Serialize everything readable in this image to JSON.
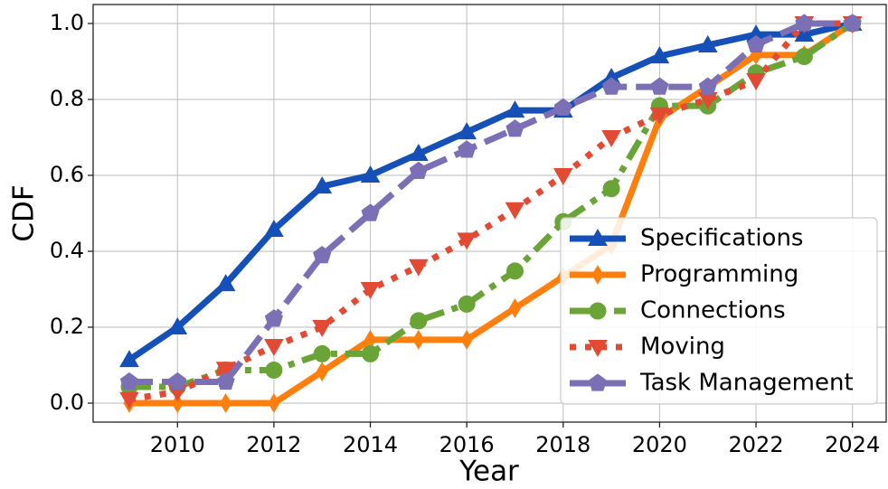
{
  "chart_data": {
    "type": "line",
    "x": [
      2009,
      2010,
      2011,
      2012,
      2013,
      2014,
      2015,
      2016,
      2017,
      2018,
      2019,
      2020,
      2021,
      2022,
      2023,
      2024
    ],
    "series": [
      {
        "name": "Specifications",
        "color": "#1550b8",
        "linestyle": "solid",
        "marker": "triangle-up",
        "values": [
          0.114,
          0.2,
          0.314,
          0.457,
          0.571,
          0.6,
          0.657,
          0.714,
          0.771,
          0.771,
          0.857,
          0.914,
          0.943,
          0.971,
          0.971,
          1.0
        ]
      },
      {
        "name": "Programming",
        "color": "#ff7f0e",
        "linestyle": "solid",
        "marker": "thin-diamond",
        "values": [
          0,
          0,
          0,
          0,
          0.083,
          0.167,
          0.167,
          0.167,
          0.25,
          0.333,
          0.417,
          0.75,
          0.833,
          0.917,
          0.917,
          1.0
        ]
      },
      {
        "name": "Connections",
        "color": "#6aa336",
        "linestyle": "dashdot",
        "marker": "circle",
        "values": [
          0.043,
          0.043,
          0.087,
          0.087,
          0.13,
          0.13,
          0.217,
          0.261,
          0.348,
          0.478,
          0.565,
          0.783,
          0.783,
          0.87,
          0.913,
          1.0
        ]
      },
      {
        "name": "Moving",
        "color": "#e24a33",
        "linestyle": "dotted",
        "marker": "triangle-down",
        "values": [
          0.01,
          0.03,
          0.09,
          0.15,
          0.2,
          0.3,
          0.36,
          0.43,
          0.51,
          0.6,
          0.7,
          0.76,
          0.8,
          0.85,
          1.0,
          1.0
        ]
      },
      {
        "name": "Task Management",
        "color": "#7b6fb6",
        "linestyle": "dashed",
        "marker": "pentagon",
        "values": [
          0.056,
          0.056,
          0.056,
          0.222,
          0.389,
          0.5,
          0.611,
          0.667,
          0.722,
          0.778,
          0.833,
          0.833,
          0.833,
          0.944,
          1.0,
          1.0
        ]
      }
    ],
    "xlabel": "Year",
    "ylabel": "CDF",
    "xlim": [
      2008.25,
      2024.7
    ],
    "ylim": [
      -0.05,
      1.05
    ],
    "xticks": [
      2010,
      2012,
      2014,
      2016,
      2018,
      2020,
      2022,
      2024
    ],
    "yticks": [
      {
        "value": 0,
        "label": "0.0"
      },
      0.2,
      0.4,
      0.6,
      0.8,
      {
        "value": 1,
        "label": "1.0"
      }
    ],
    "grid": true,
    "legend": "lower right"
  }
}
